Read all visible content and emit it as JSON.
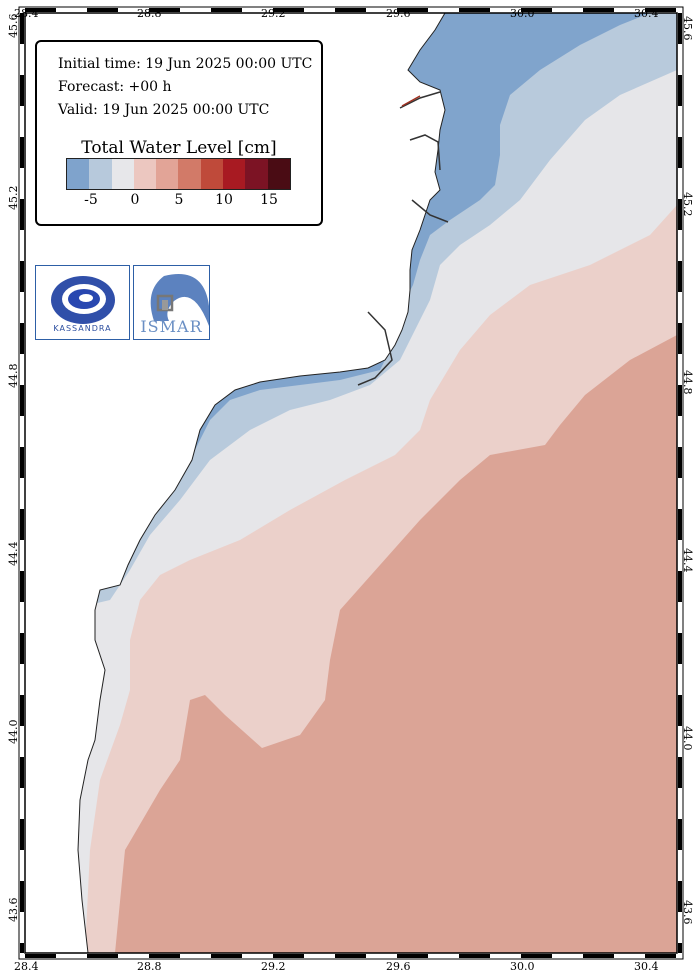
{
  "info": {
    "initial_time": "Initial time: 19 Jun 2025 00:00 UTC",
    "forecast": "Forecast: +00 h",
    "valid": "Valid: 19 Jun 2025 00:00 UTC"
  },
  "legend": {
    "title": "Total Water Level [cm]",
    "colors": [
      "#7fa3cc",
      "#b7c9dc",
      "#e7e7ea",
      "#ecc7c0",
      "#e2a497",
      "#d27a68",
      "#bf4a3a",
      "#a81a22",
      "#7c1324",
      "#4a0c14"
    ],
    "tick_labels": [
      "-5",
      "0",
      "5",
      "10",
      "15"
    ]
  },
  "logos": {
    "left_text": "KASSANDRA",
    "right_text": "ISMAR"
  },
  "axes": {
    "lon_labels": [
      "28.4",
      "28.8",
      "29.2",
      "29.6",
      "30.0",
      "30.4"
    ],
    "lat_labels": [
      "45.6",
      "45.2",
      "44.8",
      "44.4",
      "44.0",
      "43.6"
    ]
  },
  "map_colors": {
    "land": "#ffffff",
    "level_dark_blue": "#7fa3cc",
    "level_light_blue": "#b7c9dc",
    "level_neutral": "#e7e7ea",
    "level_light_pink": "#ecd0ca",
    "level_salmon": "#dba496"
  }
}
